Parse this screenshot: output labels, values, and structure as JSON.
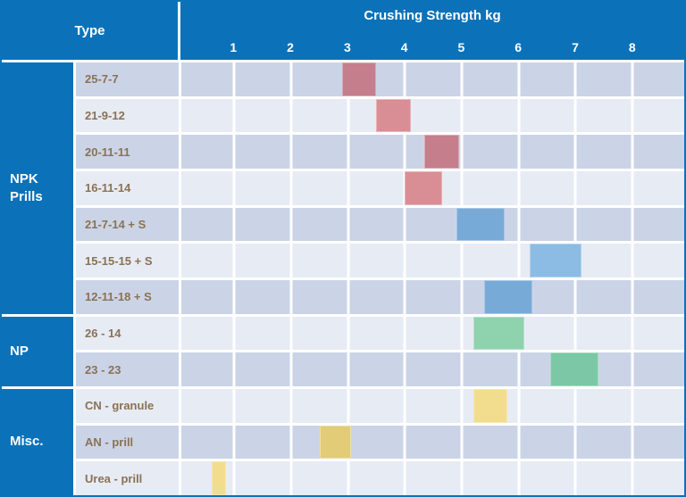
{
  "header": {
    "type_label": "Type",
    "axis_title": "Crushing Strength kg",
    "ticks": [
      1,
      2,
      3,
      4,
      5,
      6,
      7,
      8
    ]
  },
  "groups": [
    {
      "label": "NPK Prills",
      "from_row": 1,
      "to_row": 7
    },
    {
      "label": "NP",
      "from_row": 8,
      "to_row": 9
    },
    {
      "label": "Misc.",
      "from_row": 10,
      "to_row": 12
    }
  ],
  "chart_data": {
    "type": "bar",
    "orientation": "horizontal-floating",
    "title": "Crushing Strength kg",
    "xlabel": "Crushing Strength kg",
    "ylabel": "Type",
    "xlim": [
      0,
      8.9
    ],
    "x_ticks": [
      1,
      2,
      3,
      4,
      5,
      6,
      7,
      8
    ],
    "grid": true,
    "rows": [
      {
        "group": "NPK Prills",
        "label": "25-7-7",
        "range": [
          2.9,
          3.5
        ],
        "color": "#c57e8c"
      },
      {
        "group": "NPK Prills",
        "label": "21-9-12",
        "range": [
          3.5,
          4.1
        ],
        "color": "#d88e94"
      },
      {
        "group": "NPK Prills",
        "label": "20-11-11",
        "range": [
          4.35,
          4.95
        ],
        "color": "#c57e8c"
      },
      {
        "group": "NPK Prills",
        "label": "16-11-14",
        "range": [
          4.0,
          4.65
        ],
        "color": "#d88e94"
      },
      {
        "group": "NPK Prills",
        "label": "21-7-14 + S",
        "range": [
          4.9,
          5.75
        ],
        "color": "#78aad8"
      },
      {
        "group": "NPK Prills",
        "label": "15-15-15 + S",
        "range": [
          6.2,
          7.1
        ],
        "color": "#8cbce4"
      },
      {
        "group": "NPK Prills",
        "label": "12-11-18 + S",
        "range": [
          5.4,
          6.25
        ],
        "color": "#78aad8"
      },
      {
        "group": "NP",
        "label": "26 - 14",
        "range": [
          5.2,
          6.1
        ],
        "color": "#8ed2ae"
      },
      {
        "group": "NP",
        "label": "23 - 23",
        "range": [
          6.55,
          7.4
        ],
        "color": "#7cc8a6"
      },
      {
        "group": "Misc.",
        "label": "CN - granule",
        "range": [
          5.2,
          5.8
        ],
        "color": "#f2dc8e"
      },
      {
        "group": "Misc.",
        "label": "AN - prill",
        "range": [
          2.5,
          3.05
        ],
        "color": "#e2cc78"
      },
      {
        "group": "Misc.",
        "label": "Urea - prill",
        "range": [
          0.6,
          0.85
        ],
        "color": "#f2dc8e"
      }
    ]
  },
  "colors": {
    "header_bg": "#0b72b9",
    "row_dark": "#cbd4e6",
    "row_light": "#e7ebf4",
    "row_label_text": "#8a7255",
    "separator": "#ffffff"
  }
}
